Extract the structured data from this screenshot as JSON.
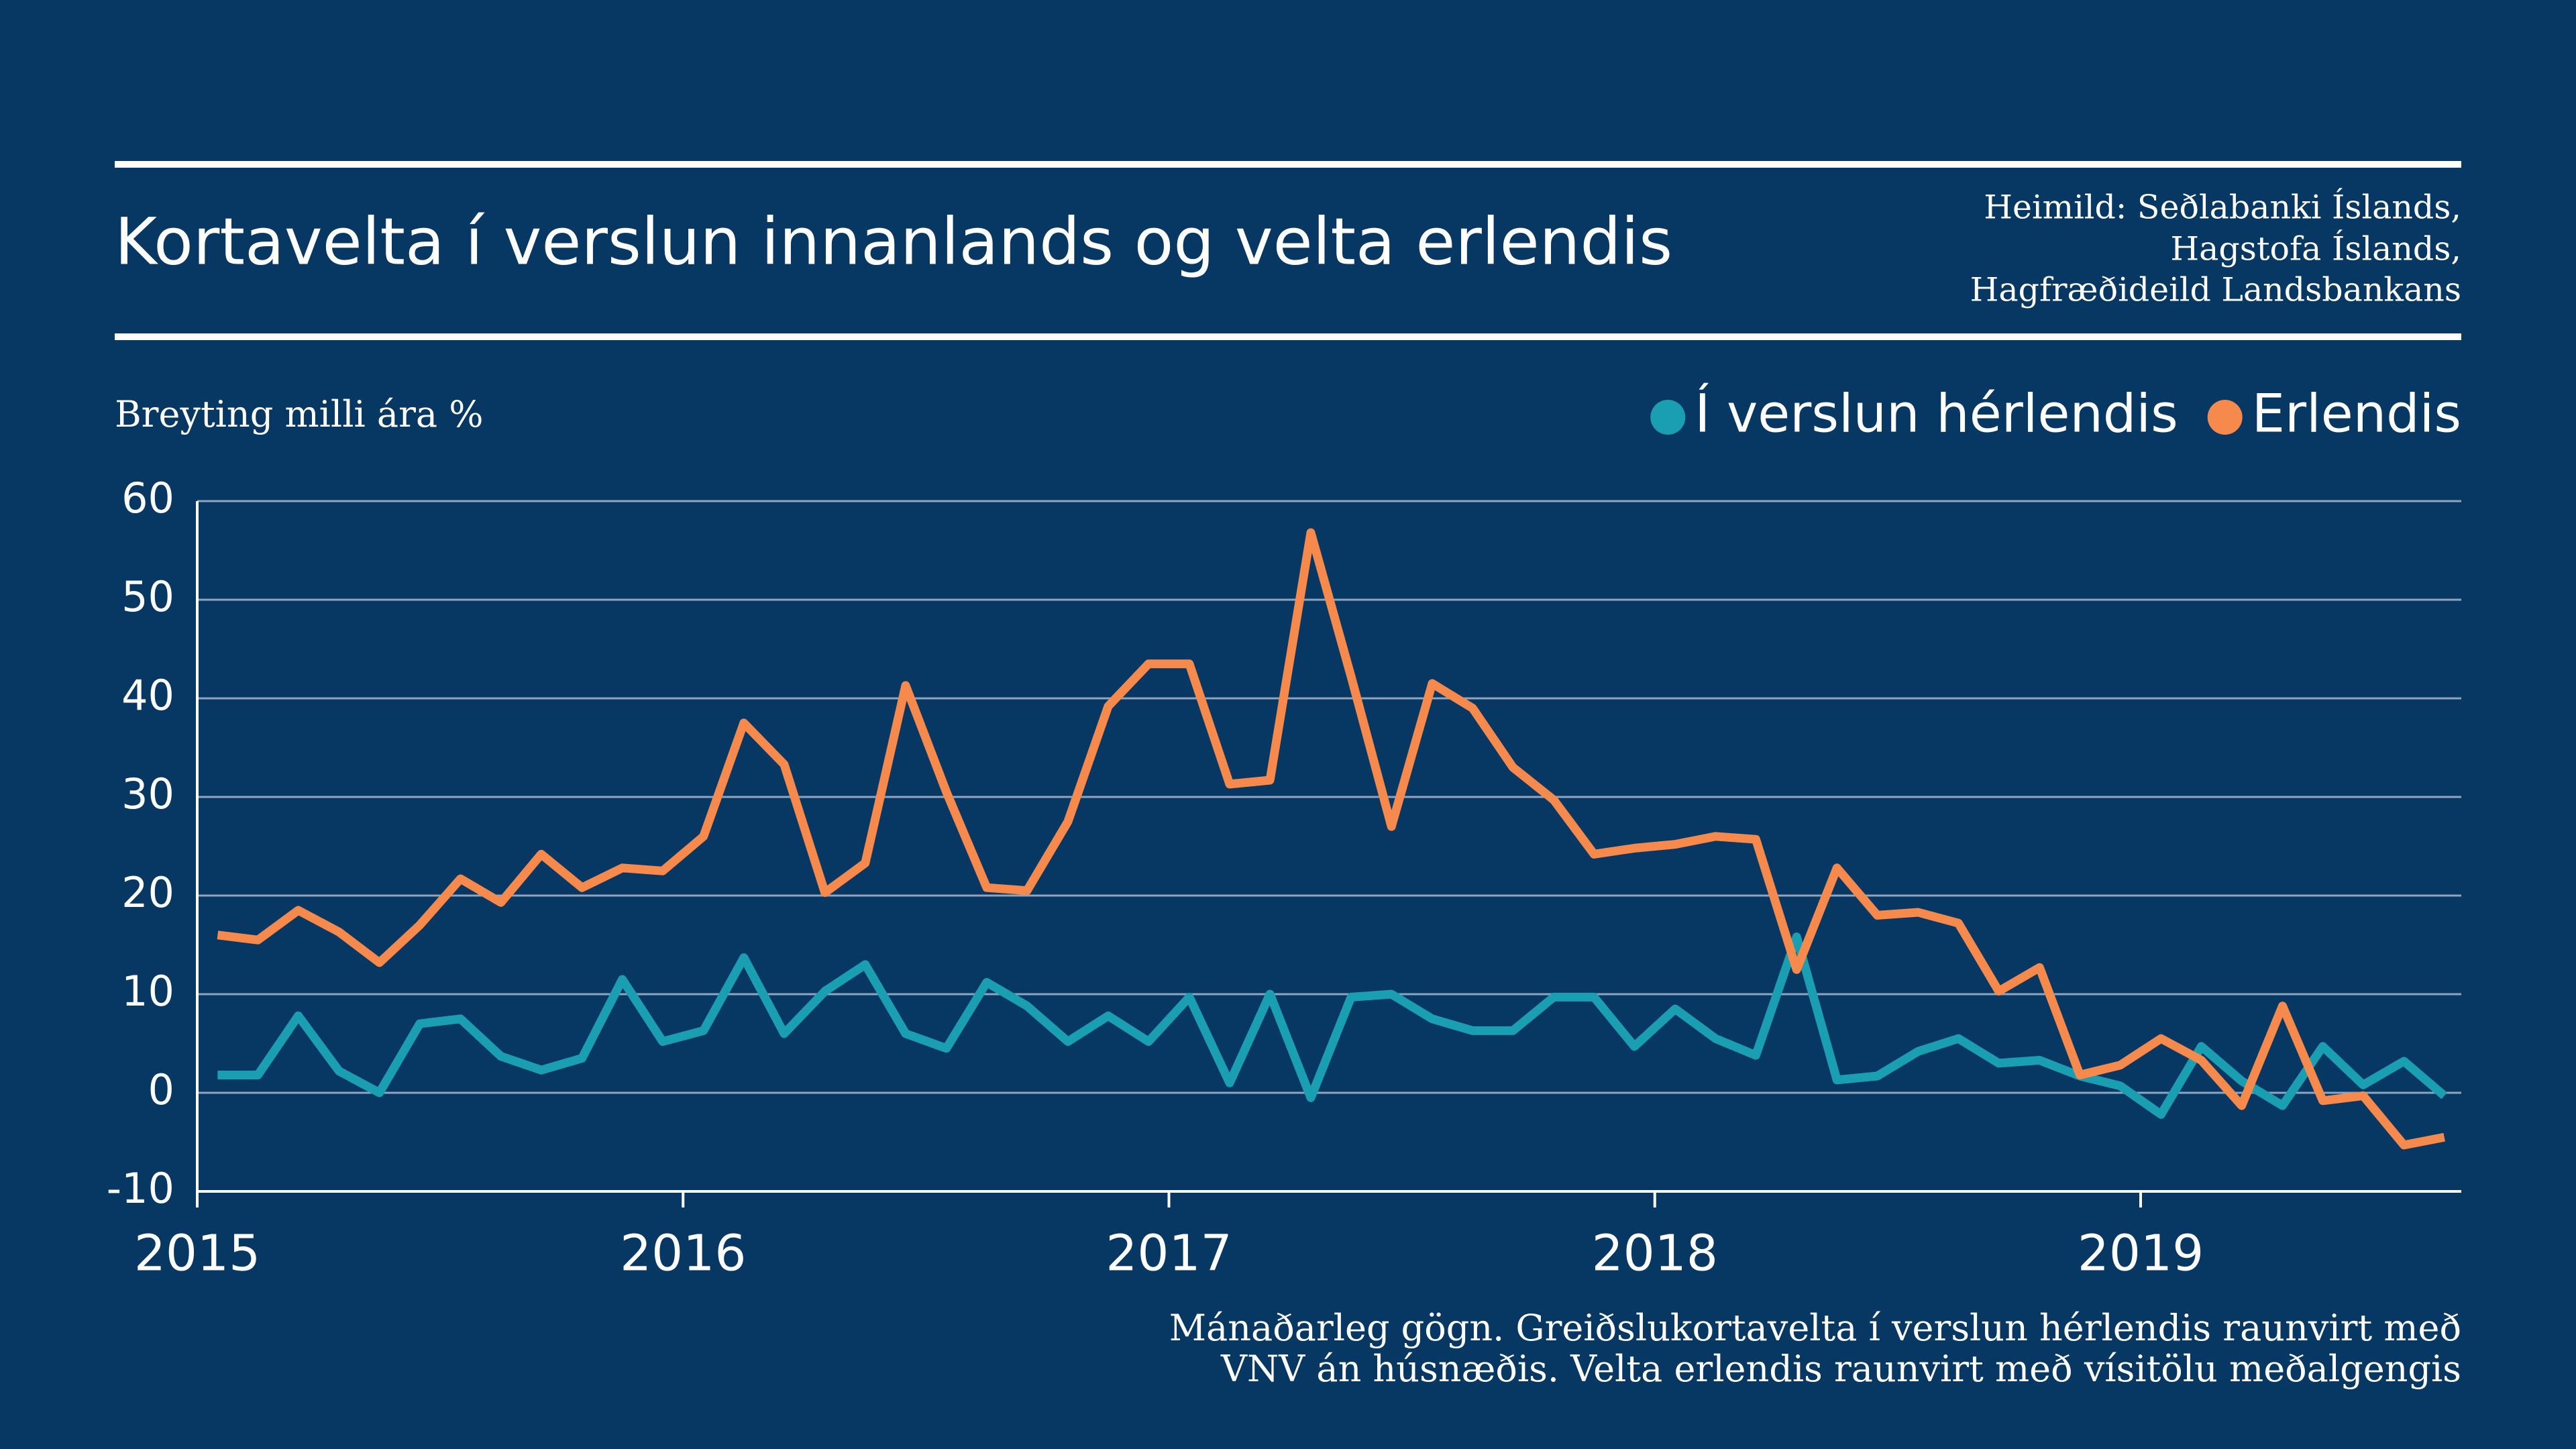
{
  "chart_data": {
    "type": "line",
    "title": "Kortavelta í verslun innanlands og velta erlendis",
    "source": [
      "Heimild: Seðlabanki Íslands,",
      "Hagstofa Íslands,",
      "Hagfræðideild Landsbankans"
    ],
    "ylabel": "Breyting milli ára %",
    "note": [
      "Mánaðarleg gögn. Greiðslukortavelta í verslun hérlendis raunvirt með",
      "VNV án húsnæðis. Velta erlendis raunvirt með vísitölu meðalgengis"
    ],
    "x": [
      2015.042,
      2015.125,
      2015.208,
      2015.292,
      2015.375,
      2015.458,
      2015.542,
      2015.625,
      2015.708,
      2015.792,
      2015.875,
      2015.958,
      2016.042,
      2016.125,
      2016.208,
      2016.292,
      2016.375,
      2016.458,
      2016.542,
      2016.625,
      2016.708,
      2016.792,
      2016.875,
      2016.958,
      2017.042,
      2017.125,
      2017.208,
      2017.292,
      2017.375,
      2017.458,
      2017.542,
      2017.625,
      2017.708,
      2017.792,
      2017.875,
      2017.958,
      2018.042,
      2018.125,
      2018.208,
      2018.292,
      2018.375,
      2018.458,
      2018.542,
      2018.625,
      2018.708,
      2018.792,
      2018.875,
      2018.958,
      2019.042,
      2019.125,
      2019.208,
      2019.292,
      2019.375,
      2019.458,
      2019.542,
      2019.625
    ],
    "series": [
      {
        "name": "Í verslun hérlendis",
        "color": "#1a9fb2",
        "values": [
          1.8,
          1.8,
          7.8,
          2.2,
          0,
          7,
          7.5,
          3.7,
          2.3,
          3.5,
          11.5,
          5.2,
          6.3,
          13.7,
          6,
          10.3,
          13,
          6,
          4.5,
          11.2,
          8.8,
          5.2,
          7.8,
          5.2,
          9.7,
          1,
          10,
          -0.5,
          9.7,
          10,
          7.5,
          6.3,
          6.3,
          9.7,
          9.7,
          4.7,
          8.5,
          5.5,
          3.8,
          15.8,
          1.3,
          1.7,
          4.2,
          5.5,
          3,
          3.3,
          1.7,
          0.7,
          -2.2,
          4.7,
          1.2,
          -1.3,
          4.7,
          0.8,
          3.2,
          -0.3
        ]
      },
      {
        "name": "Erlendis",
        "color": "#f68a4c",
        "values": [
          16,
          15.5,
          18.5,
          16.3,
          13.2,
          17,
          21.7,
          19.3,
          24.2,
          20.8,
          22.8,
          22.5,
          26,
          37.5,
          33.3,
          20.3,
          23.3,
          41.3,
          30.5,
          20.8,
          20.5,
          27.5,
          39.2,
          43.5,
          43.5,
          31.3,
          31.7,
          56.8,
          42.2,
          27,
          41.5,
          39,
          33,
          29.7,
          24.2,
          24.8,
          25.2,
          26,
          25.7,
          12.5,
          22.8,
          18,
          18.3,
          17.2,
          10.3,
          12.7,
          1.8,
          2.8,
          5.5,
          3.3,
          -1.3,
          8.8,
          -0.8,
          -0.3,
          -5.3,
          -4.5
        ]
      }
    ],
    "xlim": [
      2015,
      2019.66
    ],
    "xticks": [
      2015,
      2016,
      2017,
      2018,
      2019
    ],
    "ylim": [
      -10,
      60
    ],
    "yticks": [
      -10,
      0,
      10,
      20,
      30,
      40,
      50,
      60
    ],
    "grid": true,
    "legend": "top-right"
  }
}
